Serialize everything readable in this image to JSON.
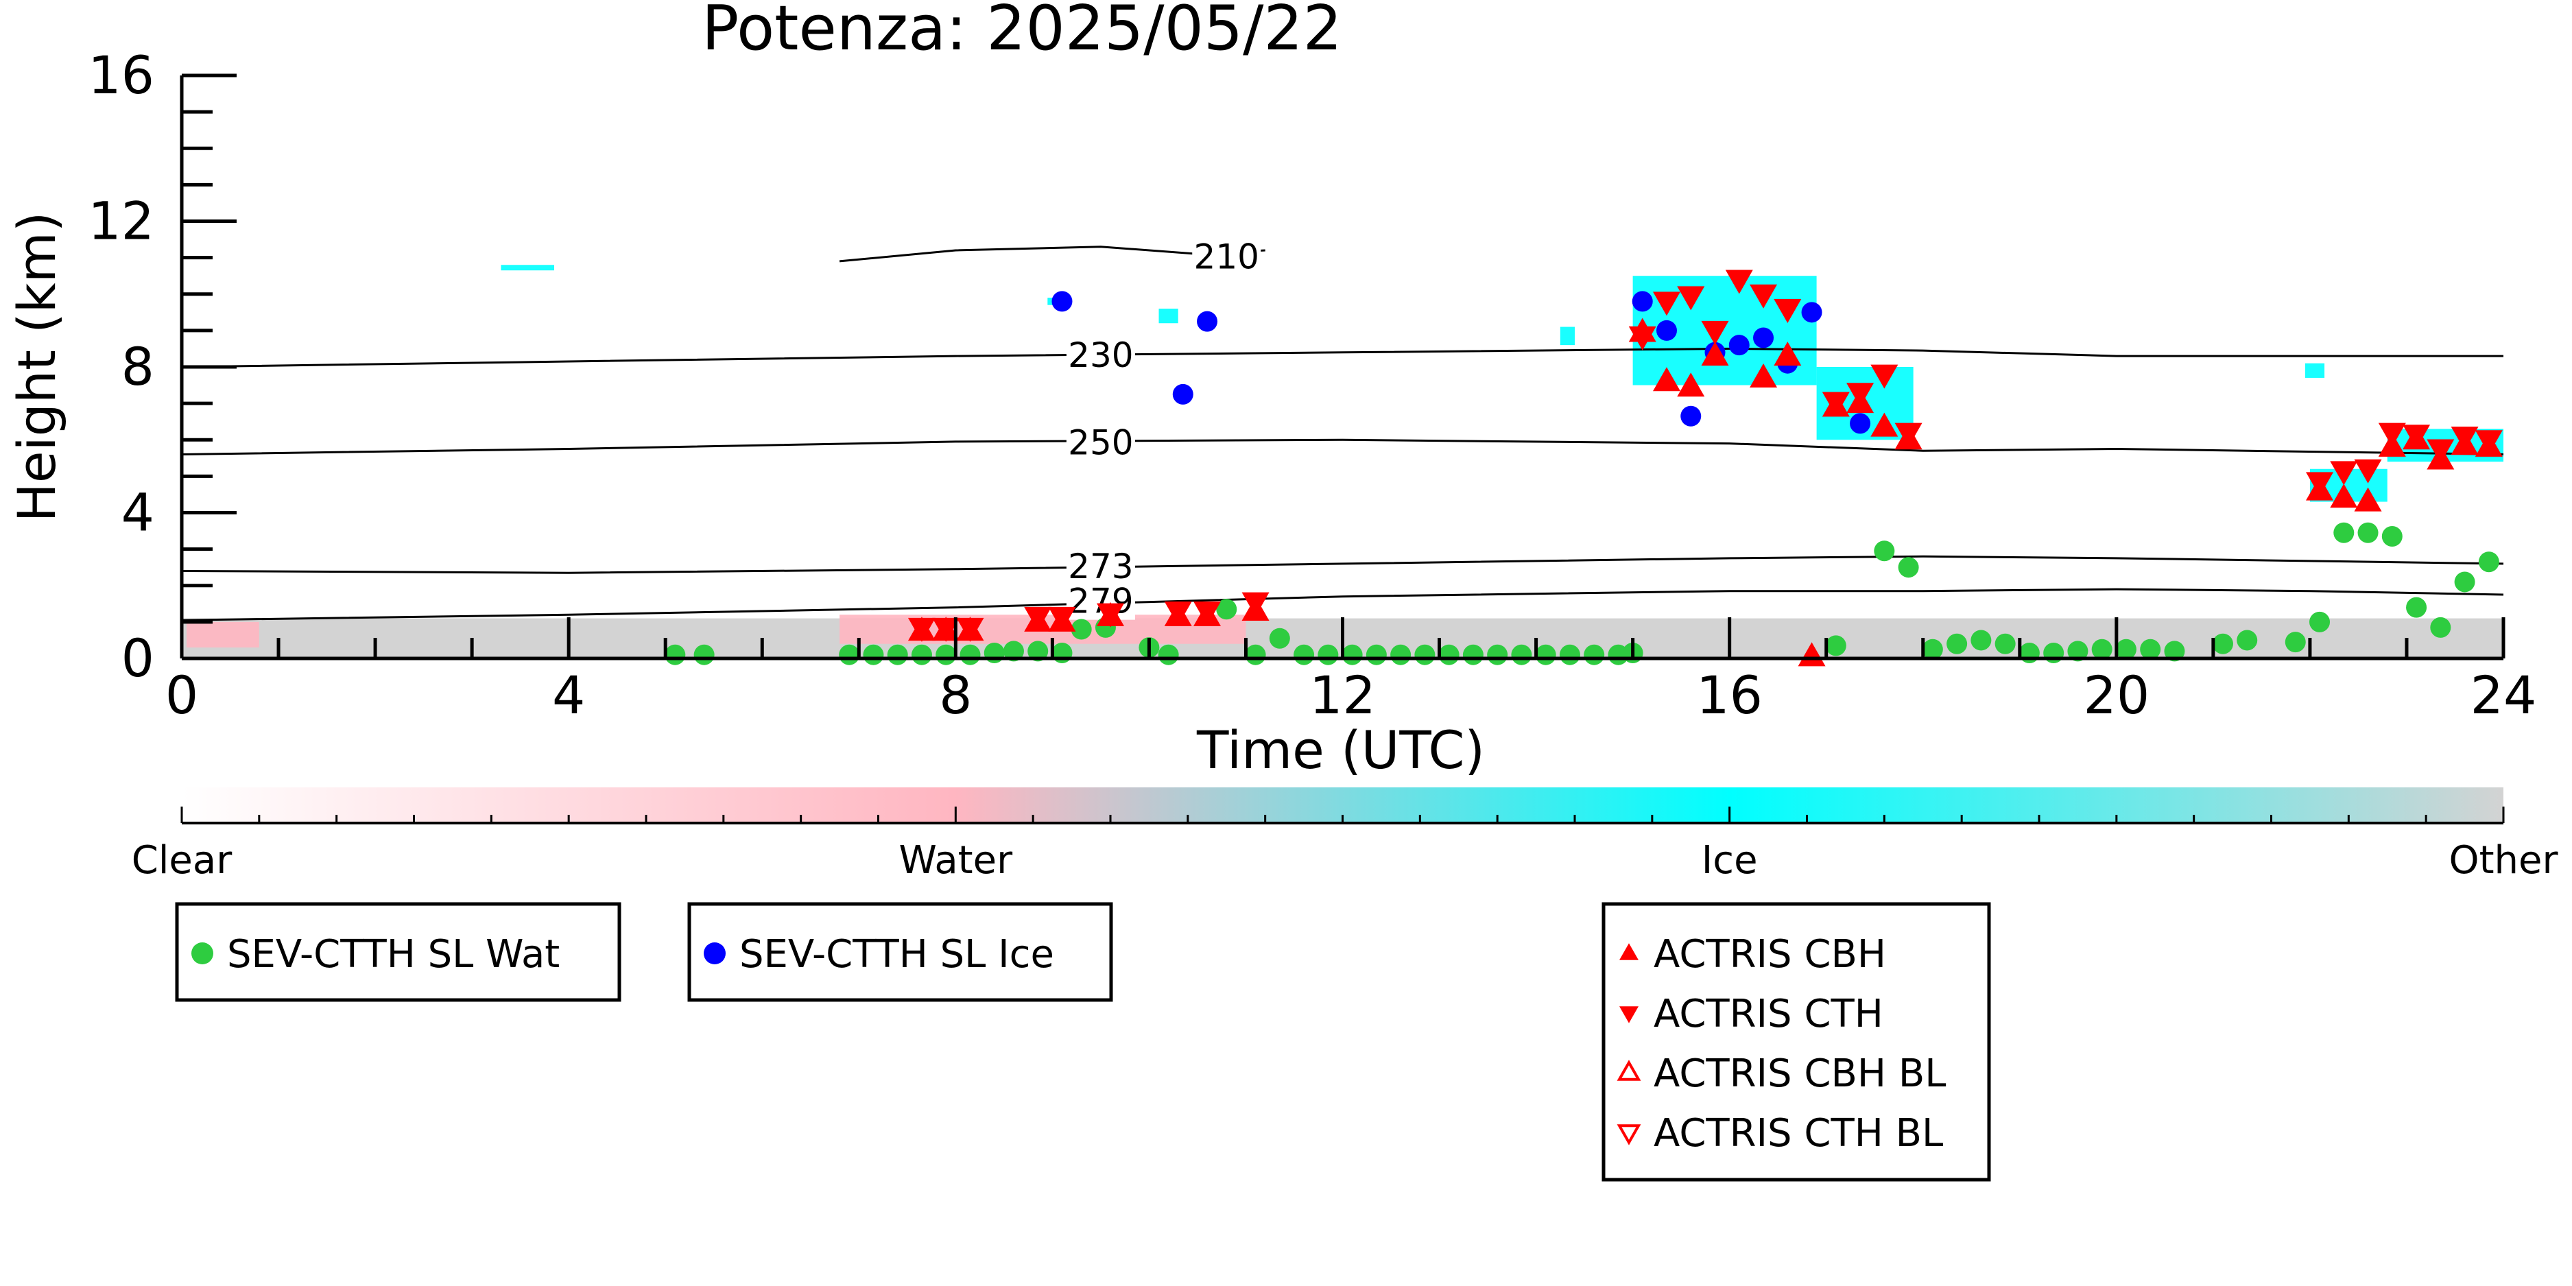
{
  "chart_data": {
    "type": "scatter",
    "title": "Potenza: 2025/05/22",
    "xlabel": "Time (UTC)",
    "ylabel": "Height (km)",
    "xlim": [
      0,
      24
    ],
    "ylim": [
      0,
      16
    ],
    "x_ticks": [
      0,
      4,
      8,
      12,
      16,
      20,
      24
    ],
    "y_ticks": [
      0,
      4,
      8,
      12,
      16
    ],
    "grid": false,
    "colors": {
      "clear": "#ffffff",
      "water": "#ffb6c1",
      "ice": "#00ffff",
      "other": "#d3d3d3",
      "sev_water": "#2ecc40",
      "sev_ice": "#0000ff",
      "actris": "#ff0000"
    },
    "colorbar": {
      "labels": [
        {
          "value": 0,
          "text": "Clear"
        },
        {
          "value": 1,
          "text": "Water"
        },
        {
          "value": 2,
          "text": "Ice"
        },
        {
          "value": 3,
          "text": "Other"
        }
      ]
    },
    "contours": [
      {
        "label": "210",
        "label_x": 10.8,
        "label_y": 11.0,
        "x": [
          6.8,
          8.0,
          9.5,
          10.5,
          11.2
        ],
        "y": [
          10.9,
          11.2,
          11.3,
          11.1,
          11.2
        ]
      },
      {
        "label": "230",
        "label_x": 9.5,
        "label_y": 8.3,
        "x": [
          0,
          4,
          8,
          12,
          16,
          18,
          20,
          24
        ],
        "y": [
          8.0,
          8.15,
          8.3,
          8.4,
          8.5,
          8.45,
          8.3,
          8.3
        ]
      },
      {
        "label": "250",
        "label_x": 9.5,
        "label_y": 5.9,
        "x": [
          0,
          4,
          8,
          12,
          16,
          18,
          20,
          24
        ],
        "y": [
          5.6,
          5.75,
          5.95,
          6.0,
          5.9,
          5.7,
          5.75,
          5.6
        ]
      },
      {
        "label": "273",
        "label_x": 9.5,
        "label_y": 2.5,
        "x": [
          0,
          4,
          8,
          12,
          16,
          18,
          20,
          24
        ],
        "y": [
          2.4,
          2.35,
          2.45,
          2.6,
          2.75,
          2.8,
          2.75,
          2.6
        ]
      },
      {
        "label": "279",
        "label_x": 9.5,
        "label_y": 1.55,
        "x": [
          0,
          4,
          8,
          12,
          16,
          18,
          20,
          22,
          24
        ],
        "y": [
          1.05,
          1.2,
          1.4,
          1.7,
          1.85,
          1.85,
          1.9,
          1.85,
          1.75
        ]
      }
    ],
    "series": [
      {
        "name": "SEV-CTTH SL Wat",
        "marker": "circle",
        "points": [
          [
            5.1,
            0.1
          ],
          [
            5.4,
            0.1
          ],
          [
            6.9,
            0.1
          ],
          [
            7.15,
            0.1
          ],
          [
            7.4,
            0.1
          ],
          [
            7.65,
            0.1
          ],
          [
            7.9,
            0.1
          ],
          [
            8.15,
            0.1
          ],
          [
            8.4,
            0.15
          ],
          [
            8.6,
            0.2
          ],
          [
            8.85,
            0.2
          ],
          [
            9.1,
            0.15
          ],
          [
            9.3,
            0.8
          ],
          [
            9.55,
            0.85
          ],
          [
            10.0,
            0.3
          ],
          [
            10.2,
            0.1
          ],
          [
            10.8,
            1.35
          ],
          [
            11.1,
            0.1
          ],
          [
            11.35,
            0.55
          ],
          [
            11.6,
            0.1
          ],
          [
            11.85,
            0.1
          ],
          [
            12.1,
            0.1
          ],
          [
            12.35,
            0.1
          ],
          [
            12.6,
            0.1
          ],
          [
            12.85,
            0.1
          ],
          [
            13.1,
            0.1
          ],
          [
            13.35,
            0.1
          ],
          [
            13.6,
            0.1
          ],
          [
            13.85,
            0.1
          ],
          [
            14.1,
            0.1
          ],
          [
            14.35,
            0.1
          ],
          [
            14.6,
            0.1
          ],
          [
            14.85,
            0.1
          ],
          [
            15.0,
            0.15
          ],
          [
            17.1,
            0.35
          ],
          [
            17.6,
            2.95
          ],
          [
            17.85,
            2.5
          ],
          [
            18.1,
            0.25
          ],
          [
            18.35,
            0.4
          ],
          [
            18.6,
            0.5
          ],
          [
            18.85,
            0.4
          ],
          [
            19.1,
            0.15
          ],
          [
            19.35,
            0.15
          ],
          [
            19.6,
            0.2
          ],
          [
            19.85,
            0.25
          ],
          [
            20.1,
            0.25
          ],
          [
            20.35,
            0.25
          ],
          [
            20.6,
            0.2
          ],
          [
            21.1,
            0.4
          ],
          [
            21.35,
            0.5
          ],
          [
            21.85,
            0.45
          ],
          [
            22.1,
            1.0
          ],
          [
            22.35,
            3.45
          ],
          [
            22.6,
            3.45
          ],
          [
            22.85,
            3.35
          ],
          [
            23.1,
            1.4
          ],
          [
            23.35,
            0.85
          ],
          [
            23.6,
            2.1
          ],
          [
            23.85,
            2.65
          ]
        ]
      },
      {
        "name": "SEV-CTTH SL Ice",
        "marker": "circle",
        "points": [
          [
            9.1,
            9.8
          ],
          [
            10.35,
            7.25
          ],
          [
            10.6,
            9.25
          ],
          [
            15.1,
            9.8
          ],
          [
            15.35,
            9.0
          ],
          [
            15.6,
            6.65
          ],
          [
            15.85,
            8.4
          ],
          [
            16.1,
            8.6
          ],
          [
            16.35,
            8.8
          ],
          [
            16.6,
            8.1
          ],
          [
            16.85,
            9.5
          ],
          [
            17.35,
            6.45
          ]
        ]
      },
      {
        "name": "ACTRIS CBH",
        "marker": "triangle-up",
        "points": [
          [
            7.65,
            0.75
          ],
          [
            7.9,
            0.75
          ],
          [
            8.15,
            0.75
          ],
          [
            8.85,
            1.0
          ],
          [
            9.1,
            1.0
          ],
          [
            9.6,
            1.15
          ],
          [
            10.3,
            1.15
          ],
          [
            10.6,
            1.15
          ],
          [
            11.1,
            1.3
          ],
          [
            15.1,
            8.95
          ],
          [
            15.35,
            7.6
          ],
          [
            15.6,
            7.45
          ],
          [
            15.85,
            8.3
          ],
          [
            16.35,
            7.7
          ],
          [
            16.6,
            8.3
          ],
          [
            16.85,
            0.05
          ],
          [
            17.1,
            6.9
          ],
          [
            17.35,
            7.0
          ],
          [
            17.6,
            6.35
          ],
          [
            17.85,
            6.0
          ],
          [
            22.1,
            4.6
          ],
          [
            22.35,
            4.4
          ],
          [
            22.6,
            4.3
          ],
          [
            22.85,
            5.8
          ],
          [
            23.1,
            6.0
          ],
          [
            23.35,
            5.45
          ],
          [
            23.6,
            5.85
          ],
          [
            23.85,
            5.8
          ]
        ]
      },
      {
        "name": "ACTRIS CTH",
        "marker": "triangle-down",
        "points": [
          [
            7.65,
            0.85
          ],
          [
            7.9,
            0.85
          ],
          [
            8.15,
            0.85
          ],
          [
            8.85,
            1.15
          ],
          [
            9.1,
            1.15
          ],
          [
            9.6,
            1.25
          ],
          [
            10.3,
            1.3
          ],
          [
            10.6,
            1.3
          ],
          [
            11.1,
            1.55
          ],
          [
            15.1,
            8.85
          ],
          [
            15.35,
            9.8
          ],
          [
            15.6,
            9.95
          ],
          [
            15.85,
            9.0
          ],
          [
            16.1,
            10.4
          ],
          [
            16.35,
            10.0
          ],
          [
            16.6,
            9.6
          ],
          [
            17.1,
            7.05
          ],
          [
            17.35,
            7.3
          ],
          [
            17.6,
            7.8
          ],
          [
            17.85,
            6.2
          ],
          [
            22.1,
            4.85
          ],
          [
            22.35,
            5.15
          ],
          [
            22.6,
            5.2
          ],
          [
            22.85,
            6.2
          ],
          [
            23.1,
            6.15
          ],
          [
            23.35,
            5.75
          ],
          [
            23.6,
            6.1
          ],
          [
            23.85,
            6.0
          ]
        ]
      },
      {
        "name": "ACTRIS CBH BL",
        "marker": "triangle-up-open",
        "points": []
      },
      {
        "name": "ACTRIS CTH BL",
        "marker": "triangle-down-open",
        "points": []
      }
    ],
    "cloud_regions": [
      {
        "type": "other",
        "x": [
          0,
          24
        ],
        "y": [
          0,
          1.1
        ]
      },
      {
        "type": "water",
        "x": [
          0.05,
          0.8
        ],
        "y": [
          0.3,
          1.0
        ]
      },
      {
        "type": "water",
        "x": [
          6.8,
          11.0
        ],
        "y": [
          0.4,
          1.2
        ]
      },
      {
        "type": "ice",
        "x": [
          15.0,
          16.9
        ],
        "y": [
          7.5,
          10.5
        ]
      },
      {
        "type": "ice",
        "x": [
          16.9,
          17.9
        ],
        "y": [
          6.0,
          8.0
        ]
      },
      {
        "type": "ice",
        "x": [
          22.0,
          22.8
        ],
        "y": [
          4.3,
          5.2
        ]
      },
      {
        "type": "ice",
        "x": [
          22.8,
          24.0
        ],
        "y": [
          5.4,
          6.3
        ]
      },
      {
        "type": "ice",
        "x": [
          3.3,
          3.85
        ],
        "y": [
          10.65,
          10.8
        ]
      },
      {
        "type": "ice",
        "x": [
          8.95,
          9.15
        ],
        "y": [
          9.7,
          9.9
        ]
      },
      {
        "type": "ice",
        "x": [
          10.1,
          10.3
        ],
        "y": [
          9.2,
          9.6
        ]
      },
      {
        "type": "ice",
        "x": [
          21.95,
          22.15
        ],
        "y": [
          7.7,
          8.1
        ]
      },
      {
        "type": "ice",
        "x": [
          14.25,
          14.4
        ],
        "y": [
          8.6,
          9.1
        ]
      }
    ]
  }
}
